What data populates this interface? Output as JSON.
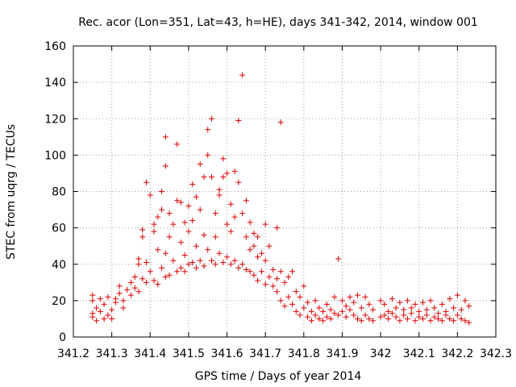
{
  "chart_data": {
    "type": "scatter",
    "title": "Rec. acor (Lon=351, Lat=43, h=HE), days 341-342, 2014, window 001",
    "xlabel": "GPS time / Days of year 2014",
    "ylabel": "STEC from uqrg / TECUs",
    "xlim": [
      341.2,
      342.3
    ],
    "ylim": [
      0,
      160
    ],
    "xticks": [
      341.2,
      341.3,
      341.4,
      341.5,
      341.6,
      341.7,
      341.8,
      341.9,
      342.0,
      342.1,
      342.2,
      342.3
    ],
    "xtick_labels": [
      "341.2",
      "341.3",
      "341.4",
      "341.5",
      "341.6",
      "341.7",
      "341.8",
      "341.9",
      "342",
      "342.1",
      "342.2",
      "342.3"
    ],
    "yticks": [
      0,
      20,
      40,
      60,
      80,
      100,
      120,
      140,
      160
    ],
    "ytick_labels": [
      "0",
      "20",
      "40",
      "60",
      "80",
      "100",
      "120",
      "140",
      "160"
    ],
    "grid": true,
    "marker": "+",
    "color": "#e00000",
    "series": [
      {
        "name": "STEC",
        "points": [
          [
            341.25,
            23
          ],
          [
            341.25,
            20
          ],
          [
            341.25,
            13
          ],
          [
            341.25,
            11
          ],
          [
            341.26,
            16
          ],
          [
            341.26,
            9
          ],
          [
            341.27,
            21
          ],
          [
            341.27,
            14
          ],
          [
            341.28,
            10
          ],
          [
            341.28,
            18
          ],
          [
            341.29,
            22
          ],
          [
            341.29,
            12
          ],
          [
            341.3,
            15
          ],
          [
            341.3,
            10
          ],
          [
            341.31,
            19
          ],
          [
            341.31,
            21
          ],
          [
            341.32,
            28
          ],
          [
            341.32,
            24
          ],
          [
            341.33,
            16
          ],
          [
            341.33,
            20
          ],
          [
            341.34,
            26
          ],
          [
            341.35,
            23
          ],
          [
            341.35,
            30
          ],
          [
            341.36,
            27
          ],
          [
            341.36,
            33
          ],
          [
            341.37,
            40
          ],
          [
            341.37,
            43
          ],
          [
            341.37,
            25
          ],
          [
            341.38,
            55
          ],
          [
            341.38,
            59
          ],
          [
            341.38,
            32
          ],
          [
            341.39,
            41
          ],
          [
            341.39,
            85
          ],
          [
            341.39,
            30
          ],
          [
            341.4,
            78
          ],
          [
            341.4,
            36
          ],
          [
            341.41,
            62
          ],
          [
            341.41,
            58
          ],
          [
            341.41,
            31
          ],
          [
            341.42,
            66
          ],
          [
            341.42,
            48
          ],
          [
            341.42,
            29
          ],
          [
            341.43,
            80
          ],
          [
            341.43,
            70
          ],
          [
            341.43,
            38
          ],
          [
            341.44,
            110
          ],
          [
            341.44,
            94
          ],
          [
            341.44,
            46
          ],
          [
            341.44,
            33
          ],
          [
            341.45,
            68
          ],
          [
            341.45,
            55
          ],
          [
            341.45,
            34
          ],
          [
            341.46,
            62
          ],
          [
            341.46,
            42
          ],
          [
            341.47,
            106
          ],
          [
            341.47,
            75
          ],
          [
            341.47,
            36
          ],
          [
            341.48,
            74
          ],
          [
            341.48,
            52
          ],
          [
            341.48,
            38
          ],
          [
            341.49,
            63
          ],
          [
            341.49,
            45
          ],
          [
            341.49,
            36
          ],
          [
            341.5,
            72
          ],
          [
            341.5,
            58
          ],
          [
            341.5,
            40
          ],
          [
            341.51,
            84
          ],
          [
            341.51,
            64
          ],
          [
            341.51,
            41
          ],
          [
            341.52,
            77
          ],
          [
            341.52,
            50
          ],
          [
            341.52,
            38
          ],
          [
            341.53,
            95
          ],
          [
            341.53,
            70
          ],
          [
            341.53,
            42
          ],
          [
            341.54,
            88
          ],
          [
            341.54,
            56
          ],
          [
            341.54,
            39
          ],
          [
            341.55,
            114
          ],
          [
            341.55,
            100
          ],
          [
            341.55,
            48
          ],
          [
            341.56,
            120
          ],
          [
            341.56,
            88
          ],
          [
            341.56,
            42
          ],
          [
            341.57,
            68
          ],
          [
            341.57,
            55
          ],
          [
            341.57,
            40
          ],
          [
            341.58,
            81
          ],
          [
            341.58,
            78
          ],
          [
            341.58,
            46
          ],
          [
            341.59,
            98
          ],
          [
            341.59,
            88
          ],
          [
            341.59,
            41
          ],
          [
            341.6,
            90
          ],
          [
            341.6,
            62
          ],
          [
            341.6,
            44
          ],
          [
            341.61,
            73
          ],
          [
            341.61,
            58
          ],
          [
            341.61,
            40
          ],
          [
            341.62,
            91
          ],
          [
            341.62,
            66
          ],
          [
            341.62,
            42
          ],
          [
            341.63,
            119
          ],
          [
            341.63,
            85
          ],
          [
            341.63,
            38
          ],
          [
            341.64,
            144
          ],
          [
            341.64,
            68
          ],
          [
            341.64,
            40
          ],
          [
            341.65,
            75
          ],
          [
            341.65,
            55
          ],
          [
            341.65,
            37
          ],
          [
            341.66,
            63
          ],
          [
            341.66,
            48
          ],
          [
            341.66,
            36
          ],
          [
            341.67,
            57
          ],
          [
            341.67,
            50
          ],
          [
            341.67,
            34
          ],
          [
            341.68,
            55
          ],
          [
            341.68,
            44
          ],
          [
            341.68,
            31
          ],
          [
            341.69,
            46
          ],
          [
            341.69,
            36
          ],
          [
            341.7,
            62
          ],
          [
            341.7,
            42
          ],
          [
            341.7,
            29
          ],
          [
            341.71,
            50
          ],
          [
            341.71,
            33
          ],
          [
            341.72,
            37
          ],
          [
            341.72,
            28
          ],
          [
            341.73,
            60
          ],
          [
            341.73,
            32
          ],
          [
            341.73,
            25
          ],
          [
            341.74,
            118
          ],
          [
            341.74,
            36
          ],
          [
            341.74,
            20
          ],
          [
            341.75,
            30
          ],
          [
            341.75,
            17
          ],
          [
            341.76,
            33
          ],
          [
            341.76,
            22
          ],
          [
            341.77,
            36
          ],
          [
            341.77,
            18
          ],
          [
            341.78,
            25
          ],
          [
            341.78,
            14
          ],
          [
            341.79,
            22
          ],
          [
            341.79,
            12
          ],
          [
            341.8,
            28
          ],
          [
            341.8,
            16
          ],
          [
            341.81,
            19
          ],
          [
            341.81,
            11
          ],
          [
            341.82,
            14
          ],
          [
            341.82,
            9
          ],
          [
            341.83,
            20
          ],
          [
            341.83,
            12
          ],
          [
            341.84,
            16
          ],
          [
            341.84,
            10
          ],
          [
            341.85,
            14
          ],
          [
            341.85,
            9
          ],
          [
            341.86,
            18
          ],
          [
            341.86,
            11
          ],
          [
            341.87,
            15
          ],
          [
            341.87,
            10
          ],
          [
            341.88,
            22
          ],
          [
            341.88,
            13
          ],
          [
            341.89,
            43
          ],
          [
            341.89,
            12
          ],
          [
            341.9,
            20
          ],
          [
            341.9,
            14
          ],
          [
            341.91,
            17
          ],
          [
            341.91,
            11
          ],
          [
            341.92,
            22
          ],
          [
            341.92,
            15
          ],
          [
            341.93,
            19
          ],
          [
            341.93,
            12
          ],
          [
            341.94,
            23
          ],
          [
            341.94,
            10
          ],
          [
            341.95,
            16
          ],
          [
            341.95,
            9
          ],
          [
            341.96,
            22
          ],
          [
            341.96,
            12
          ],
          [
            341.97,
            18
          ],
          [
            341.97,
            10
          ],
          [
            341.98,
            15
          ],
          [
            341.98,
            9
          ],
          [
            342.0,
            20
          ],
          [
            342.0,
            11
          ],
          [
            342.01,
            18
          ],
          [
            342.01,
            12
          ],
          [
            342.02,
            14
          ],
          [
            342.02,
            10
          ],
          [
            342.03,
            21
          ],
          [
            342.03,
            13
          ],
          [
            342.04,
            16
          ],
          [
            342.04,
            11
          ],
          [
            342.05,
            19
          ],
          [
            342.05,
            9
          ],
          [
            342.06,
            15
          ],
          [
            342.06,
            12
          ],
          [
            342.07,
            20
          ],
          [
            342.07,
            10
          ],
          [
            342.08,
            16
          ],
          [
            342.08,
            13
          ],
          [
            342.09,
            18
          ],
          [
            342.09,
            9
          ],
          [
            342.1,
            14
          ],
          [
            342.1,
            11
          ],
          [
            342.11,
            19
          ],
          [
            342.11,
            10
          ],
          [
            342.12,
            15
          ],
          [
            342.12,
            12
          ],
          [
            342.13,
            20
          ],
          [
            342.13,
            9
          ],
          [
            342.14,
            16
          ],
          [
            342.14,
            11
          ],
          [
            342.15,
            13
          ],
          [
            342.15,
            10
          ],
          [
            342.16,
            18
          ],
          [
            342.16,
            9
          ],
          [
            342.17,
            14
          ],
          [
            342.17,
            12
          ],
          [
            342.18,
            21
          ],
          [
            342.18,
            10
          ],
          [
            342.19,
            16
          ],
          [
            342.19,
            9
          ],
          [
            342.2,
            23
          ],
          [
            342.2,
            12
          ],
          [
            342.21,
            15
          ],
          [
            342.21,
            10
          ],
          [
            342.22,
            20
          ],
          [
            342.22,
            9
          ],
          [
            342.23,
            17
          ],
          [
            342.23,
            8
          ]
        ]
      }
    ]
  }
}
